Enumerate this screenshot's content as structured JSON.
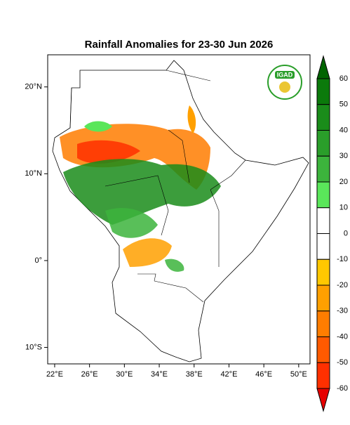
{
  "title": "Rainfall Anomalies for 23-30 Jun 2026",
  "logo_text": "IGAD",
  "map": {
    "xlim": [
      21.2,
      51.3
    ],
    "ylim": [
      -11.9,
      23.7
    ],
    "xticks": [
      {
        "value": 22,
        "label": "22°E"
      },
      {
        "value": 26,
        "label": "26°E"
      },
      {
        "value": 30,
        "label": "30°E"
      },
      {
        "value": 34,
        "label": "34°E"
      },
      {
        "value": 38,
        "label": "38°E"
      },
      {
        "value": 42,
        "label": "42°E"
      },
      {
        "value": 46,
        "label": "46°E"
      },
      {
        "value": 50,
        "label": "50°E"
      }
    ],
    "yticks": [
      {
        "value": 20,
        "label": "20°N"
      },
      {
        "value": 10,
        "label": "10°N"
      },
      {
        "value": 0,
        "label": "0°"
      },
      {
        "value": -10,
        "label": "10°S"
      }
    ]
  },
  "colorbar": {
    "levels": [
      60,
      50,
      40,
      30,
      20,
      10,
      0,
      -10,
      -20,
      -30,
      -40,
      -50,
      -60
    ],
    "colors": [
      "#006400",
      "#0b7a0b",
      "#1a8c1a",
      "#2a9e2a",
      "#3cb43c",
      "#5ae65a",
      "#ffffff",
      "#ffffff",
      "#ffc800",
      "#ffa000",
      "#ff7d00",
      "#ff5a00",
      "#ff3000",
      "#e60000"
    ]
  }
}
